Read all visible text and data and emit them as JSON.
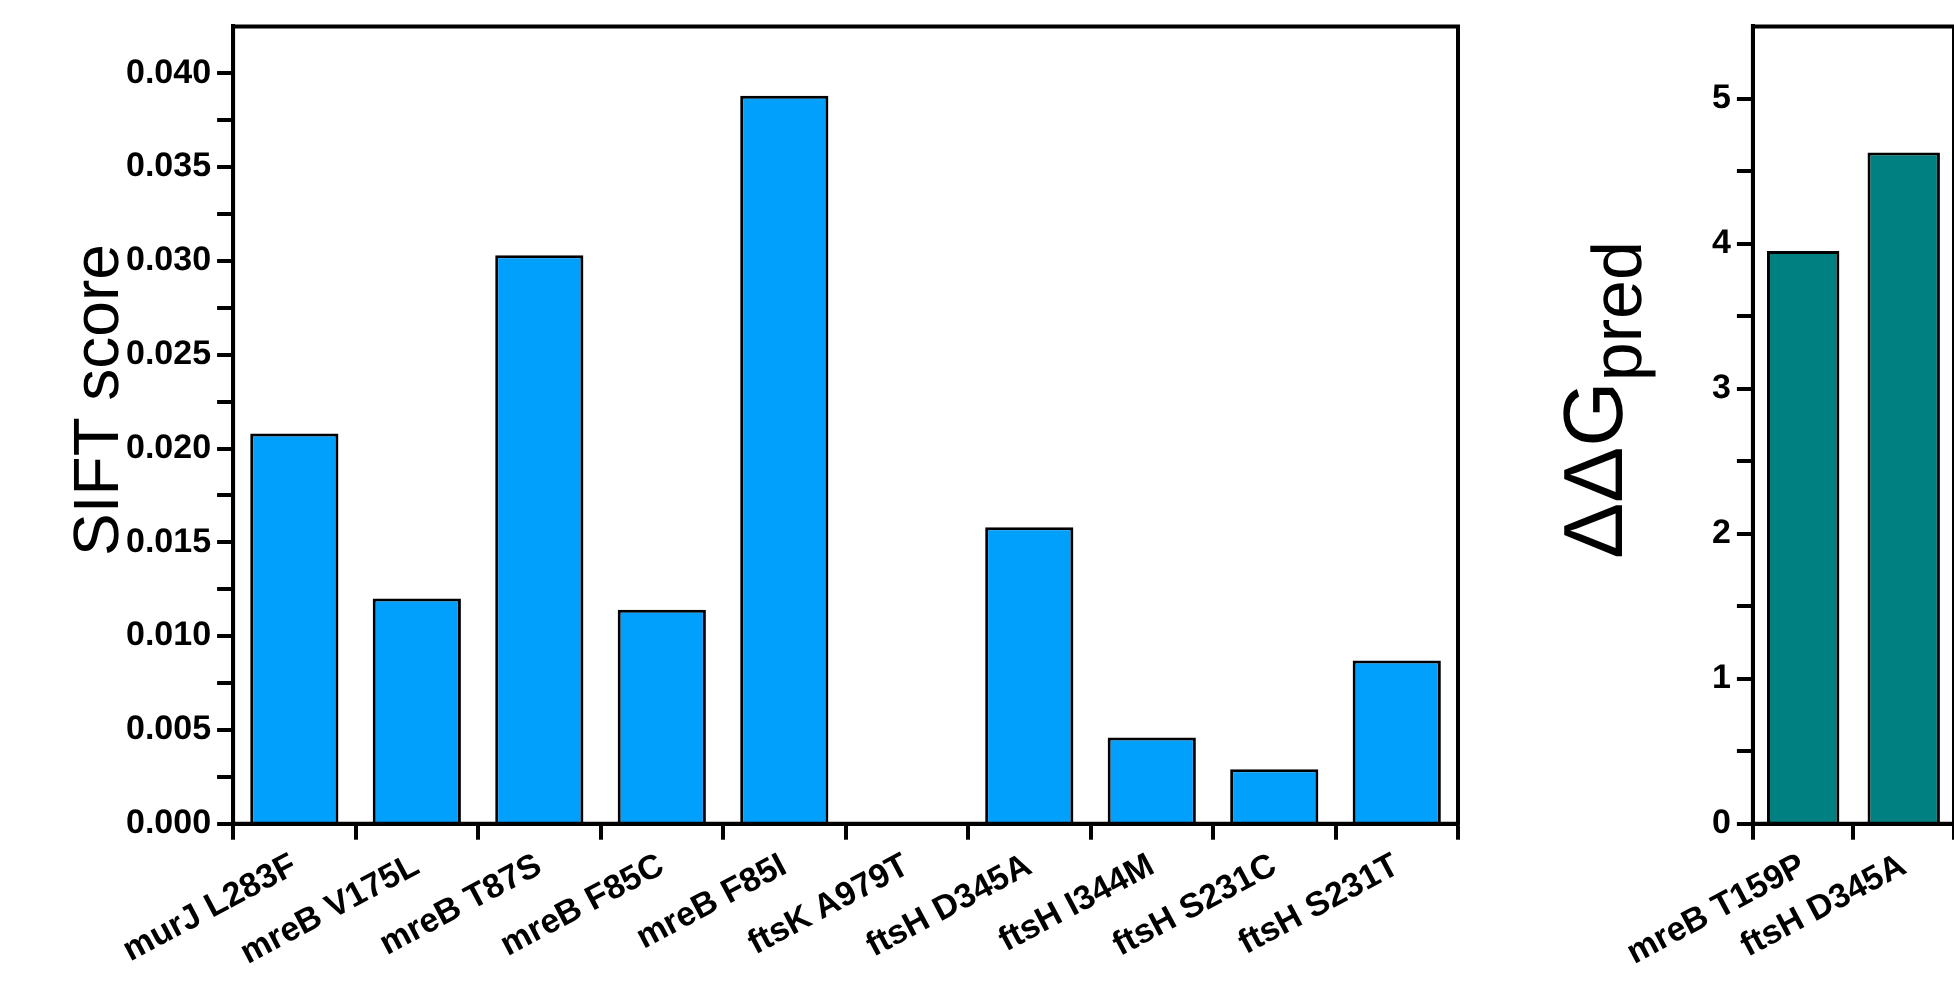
{
  "chart_data": [
    {
      "type": "bar",
      "ylabel": "SIFT score",
      "categories": [
        "murJ L283F",
        "mreB V175L",
        "mreB T87S",
        "mreB F85C",
        "mreB F85I",
        "ftsK A979T",
        "ftsH D345A",
        "ftsH I344M",
        "ftsH S231C",
        "ftsH S231T"
      ],
      "values": [
        0.0208,
        0.012,
        0.0303,
        0.0114,
        0.0388,
        0,
        0.0158,
        0.0046,
        0.0029,
        0.0087
      ],
      "color": "#00a0fc",
      "ylim": [
        0,
        0.0425
      ],
      "yticks": [
        {
          "value": 0,
          "label": "0.000"
        },
        {
          "value": 0.0025,
          "label": null
        },
        {
          "value": 0.005,
          "label": "0.005"
        },
        {
          "value": 0.0075,
          "label": null
        },
        {
          "value": 0.01,
          "label": "0.010"
        },
        {
          "value": 0.0125,
          "label": null
        },
        {
          "value": 0.015,
          "label": "0.015"
        },
        {
          "value": 0.0175,
          "label": null
        },
        {
          "value": 0.02,
          "label": "0.020"
        },
        {
          "value": 0.0225,
          "label": null
        },
        {
          "value": 0.025,
          "label": "0.025"
        },
        {
          "value": 0.0275,
          "label": null
        },
        {
          "value": 0.03,
          "label": "0.030"
        },
        {
          "value": 0.0325,
          "label": null
        },
        {
          "value": 0.035,
          "label": "0.035"
        },
        {
          "value": 0.0375,
          "label": null
        },
        {
          "value": 0.04,
          "label": "0.040"
        }
      ],
      "grid": false,
      "legend": false
    },
    {
      "type": "bar",
      "ylabel": "ΔΔG$_{pred}$",
      "categories": [
        "mreB T159P",
        "ftsH D345A"
      ],
      "values": [
        3.95,
        4.63
      ],
      "color": "#008080",
      "ylim": [
        0,
        5.5
      ],
      "yticks": [
        0,
        {
          "value": 0.5,
          "label": null
        },
        1,
        {
          "value": 1.5,
          "label": null
        },
        2,
        {
          "value": 2.5,
          "label": null
        },
        3,
        {
          "value": 3.5,
          "label": null
        },
        4,
        {
          "value": 4.5,
          "label": null
        },
        5
      ],
      "grid": false,
      "legend": false
    }
  ]
}
